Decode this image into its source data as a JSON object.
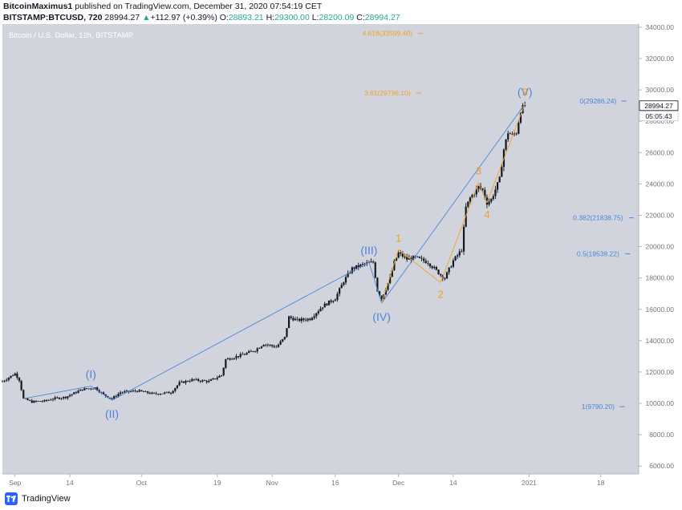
{
  "header": {
    "author": "BitcoinMaximus1",
    "published_text": "published on TradingView.com, December 31, 2020 07:54:19 CET",
    "symbol_line": "BITSTAMP:BTCUSD, 720",
    "price": "28994.27",
    "change_arrow": "▲",
    "change": "+112.97 (+0.39%)",
    "open_label": "O:",
    "open": "28893.21",
    "high_label": "H:",
    "high": "29300.00",
    "low_label": "L:",
    "low": "28200.09",
    "close_label": "C:",
    "close": "28994.27"
  },
  "footer": {
    "brand": "TradingView",
    "icon": "tradingview-logo-icon"
  },
  "colors": {
    "pane_bg": "#d1d4dc",
    "candle": "#131722",
    "wave_blue": "#4a86d8",
    "fib_orange": "#f2a126",
    "text": "#131722",
    "axis_text": "#6f7380"
  },
  "chart_data": {
    "type": "candlestick",
    "title": "Bitcoin / U.S. Dollar, 12h, BITSTAMP",
    "price_unit": "USD",
    "ylim": [
      5500,
      34200
    ],
    "xlim": [
      "2020-08-29",
      "2021-01-27"
    ],
    "y_ticks": [
      {
        "value": 6000,
        "label": "6000.00"
      },
      {
        "value": 8000,
        "label": "8000.00"
      },
      {
        "value": 10000,
        "label": "10000.00"
      },
      {
        "value": 12000,
        "label": "12000.00"
      },
      {
        "value": 14000,
        "label": "14000.00"
      },
      {
        "value": 16000,
        "label": "16000.00"
      },
      {
        "value": 18000,
        "label": "18000.00"
      },
      {
        "value": 20000,
        "label": "20000.00"
      },
      {
        "value": 22000,
        "label": "22000.00"
      },
      {
        "value": 24000,
        "label": "24000.00"
      },
      {
        "value": 26000,
        "label": "26000.00"
      },
      {
        "value": 28000,
        "label": "28000.00"
      },
      {
        "value": 30000,
        "label": "30000.00"
      },
      {
        "value": 32000,
        "label": "32000.00"
      },
      {
        "value": 34000,
        "label": "34000.00"
      }
    ],
    "x_ticks": [
      {
        "date": "2020-09-01",
        "label": "Sep"
      },
      {
        "date": "2020-09-14",
        "label": "14"
      },
      {
        "date": "2020-10-01",
        "label": "Oct"
      },
      {
        "date": "2020-10-19",
        "label": "19"
      },
      {
        "date": "2020-11-01",
        "label": "Nov"
      },
      {
        "date": "2020-11-16",
        "label": "16"
      },
      {
        "date": "2020-12-01",
        "label": "Dec"
      },
      {
        "date": "2020-12-14",
        "label": "14"
      },
      {
        "date": "2021-01-01",
        "label": "2021"
      },
      {
        "date": "2021-01-18",
        "label": "18"
      }
    ],
    "price_path": [
      [
        "2020-08-29",
        11400
      ],
      [
        "2020-09-01",
        11900
      ],
      [
        "2020-09-02",
        11500
      ],
      [
        "2020-09-03",
        10300
      ],
      [
        "2020-09-05",
        10100
      ],
      [
        "2020-09-08",
        10150
      ],
      [
        "2020-09-10",
        10300
      ],
      [
        "2020-09-13",
        10400
      ],
      [
        "2020-09-17",
        10900
      ],
      [
        "2020-09-20",
        11000
      ],
      [
        "2020-09-22",
        10550
      ],
      [
        "2020-09-24",
        10300
      ],
      [
        "2020-09-26",
        10700
      ],
      [
        "2020-09-30",
        10800
      ],
      [
        "2020-10-04",
        10600
      ],
      [
        "2020-10-08",
        10700
      ],
      [
        "2020-10-10",
        11300
      ],
      [
        "2020-10-13",
        11500
      ],
      [
        "2020-10-17",
        11400
      ],
      [
        "2020-10-20",
        11800
      ],
      [
        "2020-10-21",
        12800
      ],
      [
        "2020-10-25",
        13100
      ],
      [
        "2020-10-28",
        13400
      ],
      [
        "2020-10-30",
        13800
      ],
      [
        "2020-11-02",
        13600
      ],
      [
        "2020-11-04",
        14200
      ],
      [
        "2020-11-05",
        15500
      ],
      [
        "2020-11-07",
        15300
      ],
      [
        "2020-11-10",
        15400
      ],
      [
        "2020-11-13",
        16200
      ],
      [
        "2020-11-16",
        16700
      ],
      [
        "2020-11-18",
        17800
      ],
      [
        "2020-11-20",
        18600
      ],
      [
        "2020-11-23",
        18900
      ],
      [
        "2020-11-25",
        19000
      ],
      [
        "2020-11-26",
        17200
      ],
      [
        "2020-11-27",
        16700
      ],
      [
        "2020-11-29",
        18000
      ],
      [
        "2020-11-30",
        19000
      ],
      [
        "2020-12-01",
        19600
      ],
      [
        "2020-12-03",
        19200
      ],
      [
        "2020-12-05",
        19300
      ],
      [
        "2020-12-08",
        19000
      ],
      [
        "2020-12-11",
        18200
      ],
      [
        "2020-12-12",
        18000
      ],
      [
        "2020-12-14",
        19100
      ],
      [
        "2020-12-16",
        19800
      ],
      [
        "2020-12-17",
        22500
      ],
      [
        "2020-12-18",
        23100
      ],
      [
        "2020-12-20",
        23800
      ],
      [
        "2020-12-21",
        23600
      ],
      [
        "2020-12-22",
        22800
      ],
      [
        "2020-12-23",
        23000
      ],
      [
        "2020-12-25",
        24300
      ],
      [
        "2020-12-26",
        26200
      ],
      [
        "2020-12-27",
        27300
      ],
      [
        "2020-12-28",
        27100
      ],
      [
        "2020-12-29",
        27300
      ],
      [
        "2020-12-30",
        28700
      ],
      [
        "2020-12-31",
        28994
      ]
    ],
    "wave_points": [
      {
        "label": "(I)",
        "date": "2020-09-19",
        "price": 11100,
        "color": "blue",
        "anchor": "above"
      },
      {
        "label": "(II)",
        "date": "2020-09-24",
        "price": 10200,
        "color": "blue",
        "anchor": "below"
      },
      {
        "label": "(III)",
        "date": "2020-11-24",
        "price": 19000,
        "color": "blue",
        "anchor": "above"
      },
      {
        "label": "(IV)",
        "date": "2020-11-27",
        "price": 16400,
        "color": "blue",
        "anchor": "below"
      },
      {
        "label": "(V)",
        "date": "2020-12-31",
        "price": 29100,
        "color": "blue",
        "anchor": "above"
      },
      {
        "label": "1",
        "date": "2020-12-01",
        "price": 19800,
        "color": "orange",
        "anchor": "above"
      },
      {
        "label": "2",
        "date": "2020-12-11",
        "price": 17700,
        "color": "orange",
        "anchor": "below"
      },
      {
        "label": "3",
        "date": "2020-12-20",
        "price": 24100,
        "color": "orange",
        "anchor": "above"
      },
      {
        "label": "4",
        "date": "2020-12-22",
        "price": 22800,
        "color": "orange",
        "anchor": "below"
      },
      {
        "label": "5",
        "date": "2020-12-31",
        "price": 29100,
        "color": "orange",
        "anchor": "above"
      }
    ],
    "fib_levels": [
      {
        "label": "4.618(33599.40)",
        "price": 33599.4,
        "color": "orange",
        "date_from": "2020-11-17",
        "date_to": "2020-12-12"
      },
      {
        "label": "3.61(29796.10)",
        "price": 29796.1,
        "color": "orange",
        "date_from": "2020-11-17",
        "date_to": "2020-12-12"
      },
      {
        "label": "0(29286.24)",
        "price": 29286.24,
        "color": "blue",
        "date_from": "2021-01-06",
        "date_to": "2021-01-31"
      },
      {
        "label": "0.382(21838.75)",
        "price": 21838.75,
        "color": "blue",
        "date_from": "2021-01-06",
        "date_to": "2021-01-31"
      },
      {
        "label": "0.5(19538.22)",
        "price": 19538.22,
        "color": "blue",
        "date_from": "2021-01-06",
        "date_to": "2021-01-31"
      },
      {
        "label": "1(9790.20)",
        "price": 9790.2,
        "color": "blue",
        "date_from": "2021-01-06",
        "date_to": "2021-01-31"
      }
    ],
    "last_price_label": "28994.27",
    "countdown_label": "05:05:43"
  }
}
